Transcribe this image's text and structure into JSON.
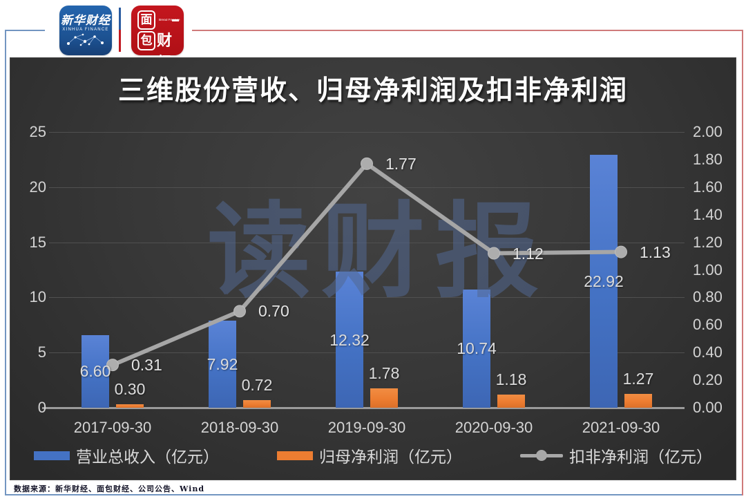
{
  "header": {
    "xinhua_logo": {
      "cn": "新华财经",
      "en": "XINHUA FINANCE"
    },
    "bread_logo": {
      "char_mian": "面",
      "char_bao": "包",
      "caijing": "财经",
      "en": "Bread Finance"
    }
  },
  "chart_data": {
    "type": "bar+line",
    "title": "三维股份营收、归母净利润及扣非净利润",
    "watermark": "读财报",
    "categories": [
      "2017-09-30",
      "2018-09-30",
      "2019-09-30",
      "2020-09-30",
      "2021-09-30"
    ],
    "series": [
      {
        "name": "营业总收入（亿元）",
        "type": "bar",
        "axis": "left",
        "color": "#4472c4",
        "values": [
          6.6,
          7.92,
          12.32,
          10.74,
          22.92
        ],
        "labels": [
          "6.60",
          "7.92",
          "12.32",
          "10.74",
          "22.92"
        ]
      },
      {
        "name": "归母净利润（亿元）",
        "type": "bar",
        "axis": "left",
        "color": "#ed7d31",
        "values": [
          0.3,
          0.72,
          1.78,
          1.18,
          1.27
        ],
        "labels": [
          "0.30",
          "0.72",
          "1.78",
          "1.18",
          "1.27"
        ]
      },
      {
        "name": "扣非净利润（亿元）",
        "type": "line",
        "axis": "right",
        "color": "#a6a6a6",
        "values": [
          0.31,
          0.7,
          1.77,
          1.12,
          1.13
        ],
        "labels": [
          "0.31",
          "0.70",
          "1.77",
          "1.12",
          "1.13"
        ]
      }
    ],
    "left_axis": {
      "min": 0,
      "max": 25,
      "step": 5,
      "tick_labels": [
        "0",
        "5",
        "10",
        "15",
        "20",
        "25"
      ]
    },
    "right_axis": {
      "min": 0,
      "max": 2,
      "step": 0.2,
      "tick_labels": [
        "0.00",
        "0.20",
        "0.40",
        "0.60",
        "0.80",
        "1.00",
        "1.20",
        "1.40",
        "1.60",
        "1.80",
        "2.00"
      ]
    },
    "grid": true,
    "legend_position": "bottom"
  },
  "footer": {
    "source": "数据来源：新华财经、面包财经、公司公告、Wind"
  }
}
